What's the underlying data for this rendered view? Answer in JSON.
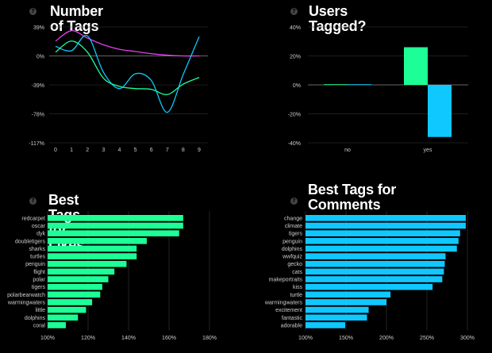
{
  "icons": {
    "help": "help-circle-icon"
  },
  "colors": {
    "green": "#1dff96",
    "blue": "#0fc8ff",
    "magenta": "#e040e8",
    "grid": "#3a3a3a",
    "tick": "#cccccc"
  },
  "chart_data": [
    {
      "type": "line",
      "title": "Number of Tags",
      "x": [
        0,
        1,
        2,
        3,
        4,
        5,
        6,
        7,
        8,
        9
      ],
      "y_ticks": [
        "39%",
        "0%",
        "-39%",
        "-78%",
        "-117%"
      ],
      "ylim": [
        -117,
        39
      ],
      "series": [
        {
          "color": "#e040e8",
          "values": [
            20,
            34,
            24,
            15,
            9,
            6,
            3,
            1,
            0,
            0
          ]
        },
        {
          "color": "#0fc8ff",
          "values": [
            13,
            7,
            27,
            -22,
            -44,
            -24,
            -33,
            -76,
            -25,
            26
          ]
        },
        {
          "color": "#1dff96",
          "values": [
            5,
            20,
            5,
            -30,
            -41,
            -44,
            -45,
            -52,
            -38,
            -29
          ]
        }
      ]
    },
    {
      "type": "bar",
      "title": "Users Tagged?",
      "categories": [
        "no",
        "yes"
      ],
      "y_ticks": [
        "40%",
        "20%",
        "0%",
        "-20%",
        "-40%"
      ],
      "ylim": [
        -40,
        40
      ],
      "series": [
        {
          "color": "#1dff96",
          "values": [
            0,
            26
          ]
        },
        {
          "color": "#0fc8ff",
          "values": [
            0,
            -36
          ]
        }
      ]
    },
    {
      "type": "bar",
      "title": "Best Tags for Likes",
      "categories": [
        "redcarpet",
        "oscar",
        "dyk",
        "doubletigers",
        "sharks",
        "turtles",
        "penguin",
        "flight",
        "polar",
        "tigers",
        "polarbearwatch",
        "warmingwaters",
        "little",
        "dolphins",
        "coral"
      ],
      "values": [
        167,
        167,
        165,
        149,
        144,
        144,
        139,
        133,
        130,
        127,
        126,
        122,
        119,
        115,
        109
      ],
      "x_ticks": [
        "100%",
        "120%",
        "140%",
        "160%",
        "180%"
      ],
      "xlim": [
        100,
        180
      ],
      "color": "#1dff96"
    },
    {
      "type": "bar",
      "title": "Best Tags for Comments",
      "categories": [
        "change",
        "climate",
        "tigers",
        "penguin",
        "dolphins",
        "wwfquiz",
        "gecko",
        "cats",
        "makeportraits",
        "kiss",
        "turtle",
        "warmingwaters",
        "excitement",
        "fantastic",
        "adorable"
      ],
      "values": [
        298,
        298,
        291,
        289,
        287,
        273,
        272,
        271,
        269,
        257,
        205,
        200,
        178,
        176,
        149
      ],
      "x_ticks": [
        "100%",
        "150%",
        "200%",
        "250%",
        "300%"
      ],
      "xlim": [
        100,
        300
      ],
      "color": "#0fc8ff"
    }
  ]
}
